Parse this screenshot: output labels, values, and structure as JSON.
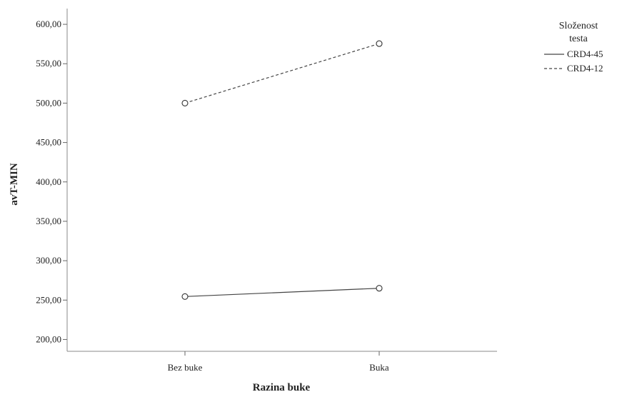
{
  "chart_data": {
    "type": "line",
    "xlabel": "Razina buke",
    "ylabel": "avT-MIN",
    "categories": [
      "Bez buke",
      "Buka"
    ],
    "ylim": [
      185,
      620
    ],
    "yticks": [
      200,
      250,
      300,
      350,
      400,
      450,
      500,
      550,
      600
    ],
    "ytick_labels": [
      "200,00",
      "250,00",
      "300,00",
      "350,00",
      "400,00",
      "450,00",
      "500,00",
      "550,00",
      "600,00"
    ],
    "grid": false,
    "legend_position": "top-right",
    "legend_title": "Složenost testa",
    "legend_title_lines": [
      "Složenost",
      "testa"
    ],
    "series": [
      {
        "name": "CRD4-45",
        "values": [
          254.5,
          265.0
        ],
        "line_style": "solid",
        "color": "#444444"
      },
      {
        "name": "CRD4-12",
        "values": [
          500.0,
          575.5
        ],
        "line_style": "dashed",
        "color": "#444444"
      }
    ]
  }
}
